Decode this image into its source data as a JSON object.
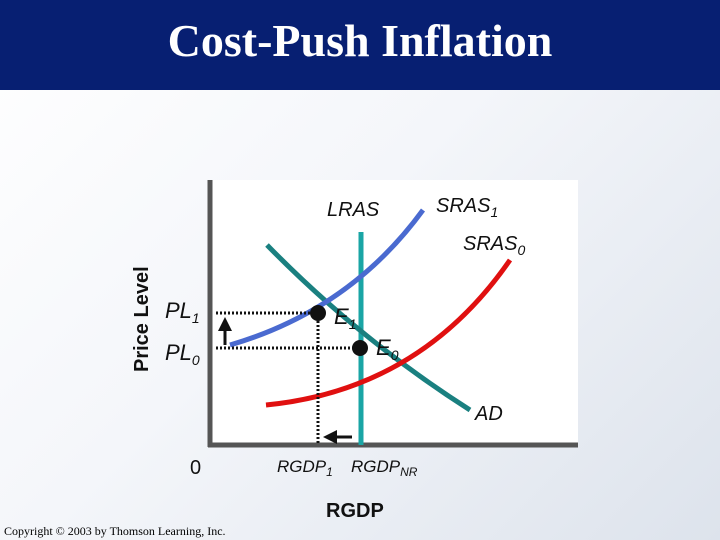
{
  "title": "Cost-Push Inflation",
  "copyright": "Copyright © 2003 by Thomson Learning, Inc.",
  "axes": {
    "y_label": "Price Level",
    "x_label": "RGDP",
    "origin_label": "0"
  },
  "curves": {
    "lras": "LRAS",
    "sras1": {
      "base": "SRAS",
      "sub": "1"
    },
    "sras0": {
      "base": "SRAS",
      "sub": "0"
    },
    "ad": "AD"
  },
  "points": {
    "e1": {
      "base": "E",
      "sub": "1"
    },
    "e0": {
      "base": "E",
      "sub": "0"
    }
  },
  "price_levels": {
    "pl1": {
      "base": "PL",
      "sub": "1"
    },
    "pl0": {
      "base": "PL",
      "sub": "0"
    }
  },
  "output_levels": {
    "rgdp1": {
      "base": "RGDP",
      "sub": "1"
    },
    "rgdpnr": {
      "base": "RGDP",
      "sub": "NR"
    }
  },
  "colors": {
    "title_bar": "#071f72",
    "lras": "#1aa5a5",
    "ad": "#1a8080",
    "sras0": "#e01010",
    "sras1": "#4a6ad0"
  }
}
